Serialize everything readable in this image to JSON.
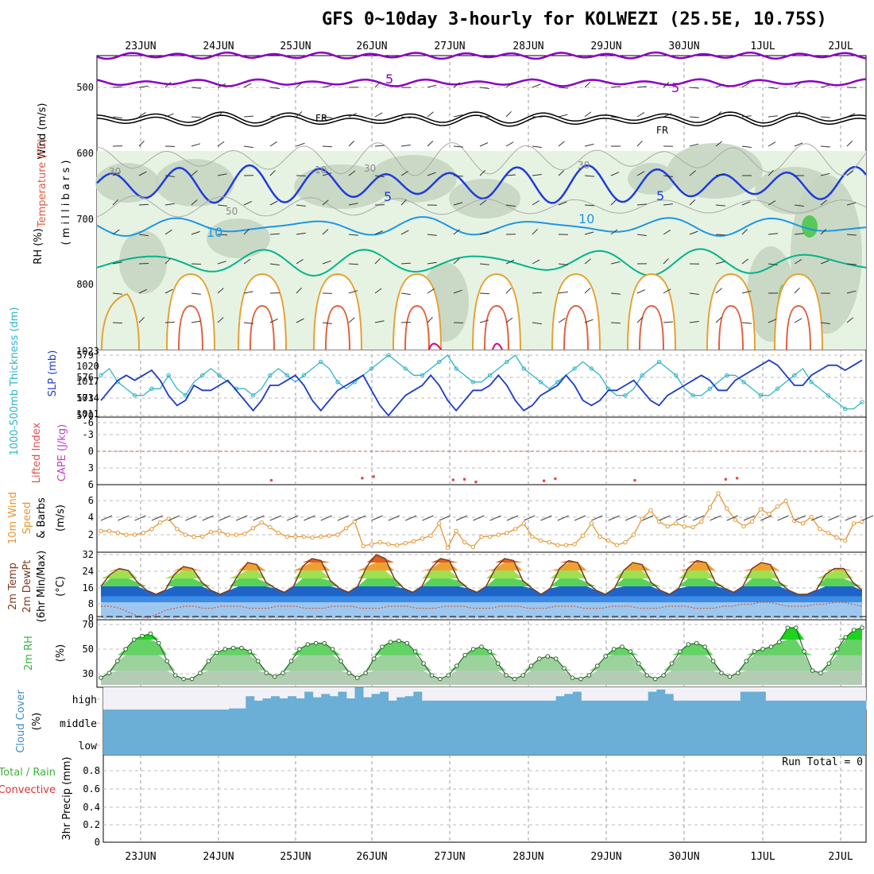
{
  "title": "GFS 0~10day 3-hourly for KOLWEZI (25.5E, 10.75S)",
  "colors": {
    "rh_green": "#58c858",
    "temp_purple": "#8a00c8",
    "freeze": "#000000",
    "blue5": "#1e3cdc",
    "blue10": "#1e96e6",
    "teal": "#00b48c",
    "orange": "#e6a032",
    "red_orange": "#e0603c",
    "magenta": "#dc0078",
    "slp": "#1e3cc8",
    "thick": "#30b4c8",
    "wind10": "#e69632",
    "rh2m": "#3cb43c",
    "cloud": "#6baed6",
    "cloud_bg": "#f3f1f8"
  },
  "dates": [
    "23JUN",
    "24JUN",
    "25JUN",
    "26JUN",
    "27JUN",
    "28JUN",
    "29JUN",
    "30JUN",
    "1JUL",
    "2JUL"
  ],
  "panels": {
    "upper": {
      "ylabel_wind": "Wind (m/s)",
      "ylabel_temp": "Temperature (°C)",
      "ylabel_rh": "RH (%)",
      "ylabel_p": "( m i l l i b a r s )",
      "yticks": [
        "500",
        "600",
        "700",
        "800"
      ],
      "contour_labels": [
        "5",
        "5",
        "FR",
        "FR",
        "5",
        "5",
        "10",
        "10",
        "30",
        "10",
        "30",
        "30",
        "50"
      ]
    },
    "slp": {
      "ylabel_thick": "1000-500mb Thickness (dm)",
      "ylabel_slp": "SLP (mb)",
      "yticks_left": [
        "579",
        "576",
        "573",
        "570"
      ],
      "yticks_right": [
        "1023",
        "1020",
        "1017",
        "1014",
        "1011"
      ]
    },
    "cape": {
      "ylabel_li": "Lifted Index",
      "ylabel_cape": "CAPE (J/kg)",
      "yticks": [
        "-6",
        "-3",
        "0",
        "3",
        "6"
      ]
    },
    "wind": {
      "ylabel_1": "10m Wind",
      "ylabel_2": "Speed",
      "ylabel_3": "& Barbs",
      "unit": "(m/s)",
      "yticks": [
        "6",
        "4",
        "2"
      ]
    },
    "temp": {
      "ylabel_1": "2m Temp",
      "ylabel_2": "2m DewPt",
      "ylabel_3": "(6hr Min/Max)",
      "unit": "(°C)",
      "yticks": [
        "32",
        "24",
        "16",
        "8",
        "0"
      ]
    },
    "rh": {
      "ylabel": "2m RH",
      "unit": "(%)",
      "yticks": [
        "70",
        "50",
        "30"
      ]
    },
    "cloud": {
      "ylabel": "Cloud Cover",
      "unit": "(%)",
      "levels": [
        "high",
        "middle",
        "low"
      ]
    },
    "precip": {
      "ylabel_total": "Total / Rain",
      "ylabel_conv": "Convective",
      "ylabel": "3hr Precip (mm)",
      "run_total": "Run Total = 0",
      "yticks": [
        "0.8",
        "0.6",
        "0.4",
        "0.2",
        "0"
      ]
    }
  },
  "chart_data": [
    {
      "type": "line",
      "name": "slp",
      "ylabel": "SLP (mb)",
      "ylim": [
        1011,
        1023
      ],
      "values": [
        1014,
        1016,
        1018,
        1019,
        1018,
        1019,
        1020,
        1018,
        1015,
        1013,
        1014,
        1017,
        1016,
        1016,
        1017,
        1018,
        1016,
        1014,
        1012,
        1014,
        1017,
        1017,
        1018,
        1019,
        1017,
        1014,
        1012,
        1014,
        1016,
        1017,
        1018,
        1019,
        1016,
        1013,
        1011,
        1013,
        1015,
        1016,
        1017,
        1019,
        1017,
        1014,
        1012,
        1014,
        1016,
        1016,
        1017,
        1019,
        1017,
        1014,
        1012,
        1013,
        1015,
        1016,
        1017,
        1019,
        1017,
        1014,
        1013,
        1014,
        1016,
        1016,
        1017,
        1018,
        1016,
        1014,
        1013,
        1015,
        1016,
        1017,
        1018,
        1019,
        1018,
        1016,
        1016,
        1018,
        1019,
        1020,
        1021,
        1022,
        1021,
        1019,
        1017,
        1017,
        1019,
        1020,
        1021,
        1021,
        1020,
        1021,
        1022
      ]
    },
    {
      "type": "line",
      "name": "thickness",
      "ylabel": "1000-500mb Thickness (dm)",
      "ylim": [
        570,
        579
      ],
      "values": [
        576,
        577,
        575,
        574,
        573,
        573,
        574,
        574,
        576,
        574,
        573,
        575,
        576,
        577,
        576,
        575,
        574,
        574,
        573,
        574,
        576,
        577,
        576,
        575,
        576,
        577,
        578,
        577,
        575,
        574,
        575,
        576,
        577,
        578,
        579,
        578,
        577,
        576,
        576,
        577,
        578,
        579,
        577,
        576,
        575,
        575,
        576,
        577,
        578,
        579,
        577,
        576,
        575,
        574,
        575,
        576,
        577,
        578,
        577,
        576,
        574,
        573,
        573,
        574,
        576,
        577,
        578,
        577,
        576,
        574,
        573,
        573,
        574,
        575,
        576,
        576,
        575,
        574,
        573,
        573,
        574,
        575,
        576,
        577,
        575,
        574,
        573,
        572,
        571,
        571,
        572
      ]
    },
    {
      "type": "line",
      "name": "lifted_index",
      "ylabel": "Lifted Index",
      "ylim": [
        6,
        -6
      ],
      "values": [
        6,
        6,
        6,
        6,
        6,
        6,
        6,
        6,
        6,
        6,
        6,
        6,
        6,
        6,
        6,
        5.2,
        6,
        6,
        6,
        6,
        6,
        6,
        6,
        4.8,
        4.5,
        6,
        6,
        6,
        6,
        6,
        6,
        5.1,
        5.0,
        5.5,
        6,
        6,
        6,
        6,
        6,
        5.3,
        4.9,
        6,
        6,
        6,
        6,
        6,
        6,
        5.2,
        6,
        6,
        6,
        6,
        6,
        6,
        6,
        5.0,
        4.8,
        6,
        6,
        6,
        6,
        6,
        6,
        6,
        6,
        6,
        6,
        6
      ]
    },
    {
      "type": "line",
      "name": "wind_speed_10m",
      "ylabel": "Speed (m/s)",
      "ylim": [
        1,
        7.5
      ],
      "values": [
        3,
        3,
        2.8,
        2.6,
        2.6,
        2.8,
        3.2,
        3.9,
        4.3,
        3.2,
        2.6,
        2.4,
        2.4,
        2.9,
        3,
        2.6,
        2.6,
        2.7,
        3.3,
        3.9,
        3.4,
        2.8,
        2.4,
        2.4,
        2.4,
        2.3,
        2.4,
        2.5,
        2.6,
        3.3,
        4,
        1.4,
        1.6,
        1.8,
        1.6,
        1.5,
        1.7,
        1.9,
        2.2,
        2.5,
        3.8,
        1.2,
        3,
        1.8,
        1.3,
        2.4,
        2.4,
        2.6,
        2.8,
        3.2,
        3.8,
        2.4,
        2,
        1.8,
        1.5,
        1.5,
        1.6,
        2.5,
        3.8,
        2.4,
        2,
        1.5,
        1.8,
        2.6,
        4.3,
        5.2,
        4,
        3.5,
        3.8,
        3.5,
        3.4,
        4,
        5.5,
        7,
        5.4,
        4.2,
        3.5,
        4,
        5.3,
        4.8,
        5.6,
        6.2,
        4.1,
        3.8,
        4.5,
        3.2,
        2.8,
        2.3,
        2,
        3.8,
        4
      ]
    },
    {
      "type": "area",
      "name": "temp_2m",
      "ylabel": "2m Temp (°C)",
      "ylim": [
        0,
        32
      ],
      "values": [
        16,
        22,
        25,
        24,
        18,
        14,
        12,
        14,
        22,
        26,
        25,
        18,
        14,
        12,
        14,
        22,
        28,
        27,
        18,
        15,
        13,
        16,
        26,
        30,
        29,
        19,
        15,
        13,
        16,
        26,
        32,
        30,
        20,
        15,
        13,
        16,
        25,
        30,
        29,
        19,
        15,
        13,
        16,
        25,
        30,
        29,
        19,
        15,
        12,
        15,
        25,
        29,
        28,
        18,
        14,
        12,
        15,
        24,
        28,
        27,
        18,
        14,
        12,
        15,
        25,
        29,
        28,
        18,
        15,
        13,
        16,
        25,
        28,
        27,
        18,
        14,
        12,
        12,
        14,
        22,
        25,
        25,
        18,
        14
      ]
    },
    {
      "type": "line",
      "name": "dewpoint_2m",
      "ylabel": "2m DewPt (°C)",
      "ylim": [
        0,
        32
      ],
      "values": [
        6,
        6,
        5,
        3,
        1,
        0,
        2,
        4,
        5,
        6,
        6,
        5,
        5,
        6,
        6,
        6,
        5,
        5,
        5,
        6,
        6,
        6,
        5,
        5,
        5,
        6,
        6,
        6,
        5,
        5,
        5,
        6,
        6,
        6,
        5,
        5,
        5,
        6,
        6,
        6,
        5,
        5,
        5,
        6,
        6,
        6,
        5,
        5,
        5,
        6,
        6,
        6,
        5,
        5,
        5,
        6,
        6,
        6,
        5,
        5,
        5,
        6,
        6,
        6,
        5,
        5,
        5,
        6,
        6,
        7,
        7,
        8,
        8,
        7,
        6,
        6,
        6,
        7,
        7,
        8,
        8,
        7,
        6
      ]
    },
    {
      "type": "area",
      "name": "rh_2m",
      "ylabel": "2m RH (%)",
      "ylim": [
        20,
        72
      ],
      "values": [
        26,
        30,
        40,
        50,
        58,
        61,
        63,
        55,
        40,
        28,
        25,
        25,
        30,
        40,
        47,
        50,
        51,
        51,
        48,
        40,
        30,
        27,
        30,
        40,
        50,
        54,
        55,
        55,
        50,
        40,
        30,
        26,
        30,
        42,
        52,
        56,
        57,
        55,
        48,
        38,
        28,
        25,
        28,
        36,
        45,
        50,
        52,
        48,
        38,
        28,
        25,
        28,
        36,
        42,
        44,
        42,
        34,
        26,
        25,
        28,
        36,
        44,
        50,
        52,
        48,
        38,
        28,
        25,
        28,
        38,
        48,
        54,
        55,
        52,
        40,
        30,
        27,
        30,
        40,
        48,
        50,
        52,
        56,
        68,
        68,
        48,
        32,
        30,
        38,
        50,
        60,
        66,
        68
      ]
    },
    {
      "type": "bar",
      "name": "cloud_high",
      "ylabel": "Cloud Cover (%)",
      "ylim": [
        0,
        100
      ],
      "values": [
        0,
        0,
        0,
        0,
        0,
        0,
        0,
        0,
        0,
        0,
        0,
        0,
        0,
        0,
        0,
        5,
        5,
        60,
        40,
        50,
        60,
        50,
        60,
        50,
        80,
        55,
        70,
        60,
        80,
        50,
        100,
        55,
        70,
        80,
        40,
        55,
        60,
        80,
        40,
        40,
        40,
        40,
        40,
        40,
        40,
        40,
        40,
        40,
        40,
        40,
        40,
        40,
        40,
        40,
        60,
        70,
        80,
        40,
        40,
        40,
        40,
        40,
        40,
        40,
        40,
        80,
        90,
        70,
        40,
        40,
        40,
        40,
        40,
        40,
        40,
        40,
        80,
        80,
        80,
        40,
        40,
        40,
        40,
        40,
        40,
        40,
        40,
        40,
        40,
        40,
        40
      ]
    },
    {
      "type": "bar",
      "name": "precip_3hr",
      "ylabel": "3hr Precip (mm)",
      "ylim": [
        0,
        1
      ],
      "values": [
        0,
        0,
        0,
        0,
        0,
        0,
        0,
        0,
        0,
        0,
        0,
        0,
        0,
        0,
        0,
        0,
        0,
        0,
        0,
        0,
        0,
        0,
        0,
        0,
        0,
        0,
        0,
        0,
        0,
        0,
        0,
        0,
        0,
        0,
        0,
        0,
        0,
        0,
        0,
        0,
        0,
        0,
        0,
        0,
        0,
        0,
        0,
        0,
        0,
        0,
        0,
        0,
        0,
        0,
        0,
        0,
        0,
        0,
        0,
        0,
        0,
        0,
        0,
        0,
        0,
        0,
        0,
        0,
        0,
        0,
        0,
        0,
        0,
        0,
        0,
        0,
        0,
        0,
        0,
        0,
        0
      ]
    }
  ]
}
